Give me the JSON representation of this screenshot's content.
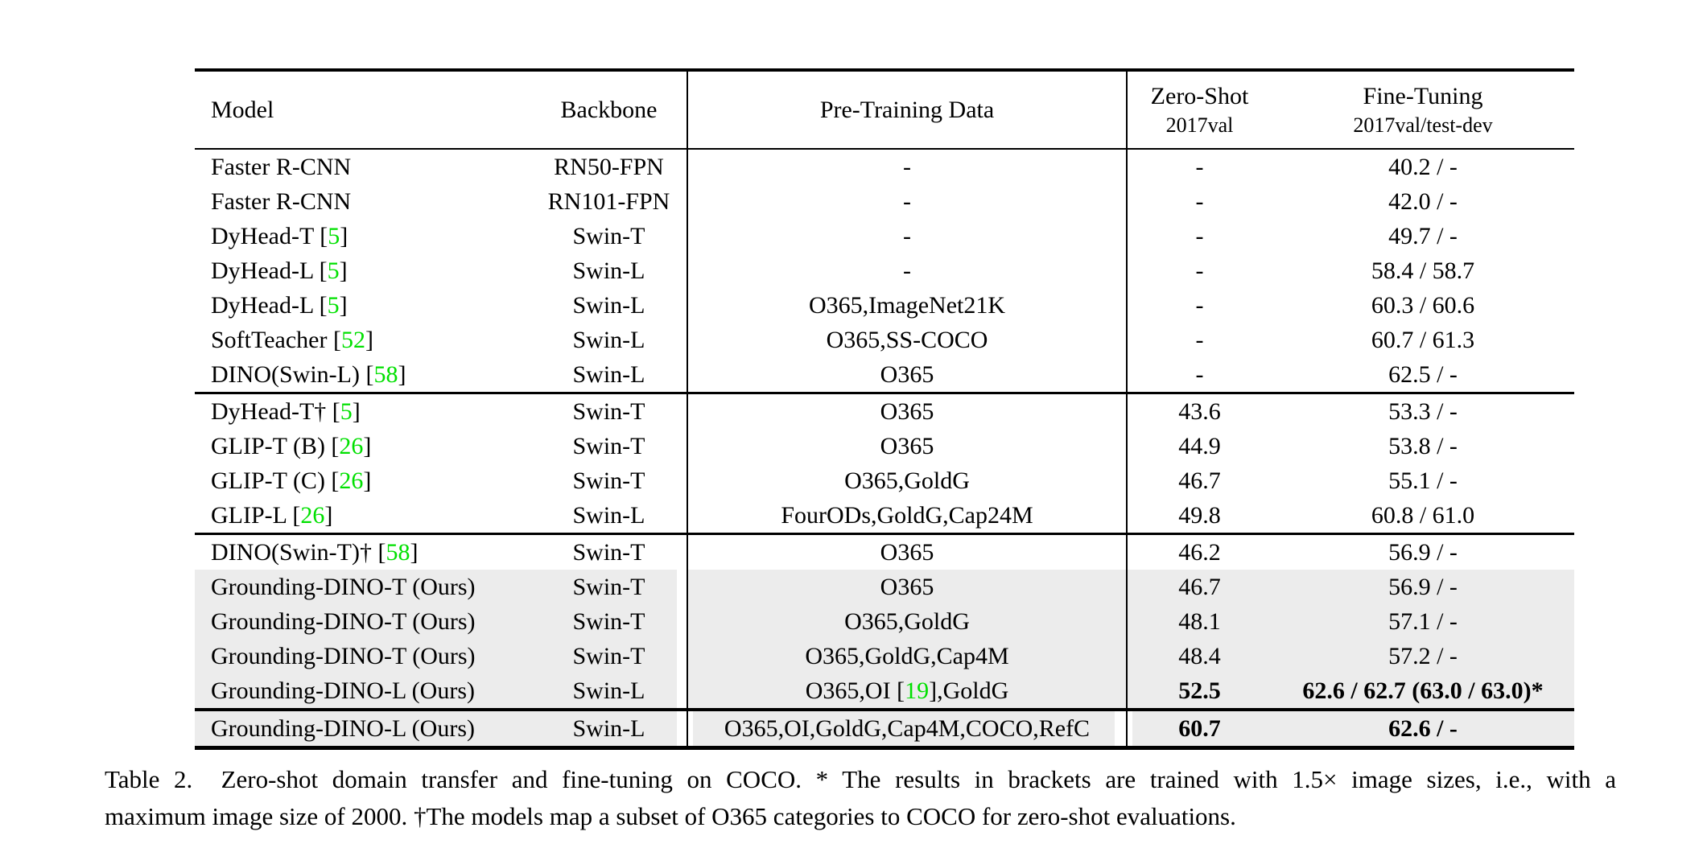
{
  "colors": {
    "citation_link": "#00e000",
    "row_highlight": "#ececec",
    "text": "#000000"
  },
  "table": {
    "header": {
      "model": "Model",
      "backbone": "Backbone",
      "pretrain": "Pre-Training Data",
      "zeroshot_title": "Zero-Shot",
      "zeroshot_sub": "2017val",
      "finetune_title": "Fine-Tuning",
      "finetune_sub": "2017val/test-dev"
    },
    "sections": [
      {
        "rows": [
          {
            "model_pre": "Faster R-CNN",
            "model_cite": "",
            "model_post": "",
            "backbone": "RN50-FPN",
            "pretrain_pre": "-",
            "pretrain_cite": "",
            "pretrain_post": "",
            "zeroshot": "-",
            "finetune": "40.2 / -",
            "bold_scores": false,
            "highlight": false
          },
          {
            "model_pre": "Faster R-CNN",
            "model_cite": "",
            "model_post": "",
            "backbone": "RN101-FPN",
            "pretrain_pre": "-",
            "pretrain_cite": "",
            "pretrain_post": "",
            "zeroshot": "-",
            "finetune": "42.0 / -",
            "bold_scores": false,
            "highlight": false
          },
          {
            "model_pre": "DyHead-T [",
            "model_cite": "5",
            "model_post": "]",
            "backbone": "Swin-T",
            "pretrain_pre": "-",
            "pretrain_cite": "",
            "pretrain_post": "",
            "zeroshot": "-",
            "finetune": "49.7 / -",
            "bold_scores": false,
            "highlight": false
          },
          {
            "model_pre": "DyHead-L [",
            "model_cite": "5",
            "model_post": "]",
            "backbone": "Swin-L",
            "pretrain_pre": "-",
            "pretrain_cite": "",
            "pretrain_post": "",
            "zeroshot": "-",
            "finetune": "58.4 / 58.7",
            "bold_scores": false,
            "highlight": false
          },
          {
            "model_pre": "DyHead-L [",
            "model_cite": "5",
            "model_post": "]",
            "backbone": "Swin-L",
            "pretrain_pre": "O365,ImageNet21K",
            "pretrain_cite": "",
            "pretrain_post": "",
            "zeroshot": "-",
            "finetune": "60.3 / 60.6",
            "bold_scores": false,
            "highlight": false
          },
          {
            "model_pre": "SoftTeacher [",
            "model_cite": "52",
            "model_post": "]",
            "backbone": "Swin-L",
            "pretrain_pre": "O365,SS-COCO",
            "pretrain_cite": "",
            "pretrain_post": "",
            "zeroshot": "-",
            "finetune": "60.7 / 61.3",
            "bold_scores": false,
            "highlight": false
          },
          {
            "model_pre": "DINO(Swin-L) [",
            "model_cite": "58",
            "model_post": "]",
            "backbone": "Swin-L",
            "pretrain_pre": "O365",
            "pretrain_cite": "",
            "pretrain_post": "",
            "zeroshot": "-",
            "finetune": "62.5 / -",
            "bold_scores": false,
            "highlight": false
          }
        ]
      },
      {
        "rows": [
          {
            "model_pre": "DyHead-T† [",
            "model_cite": "5",
            "model_post": "]",
            "backbone": "Swin-T",
            "pretrain_pre": "O365",
            "pretrain_cite": "",
            "pretrain_post": "",
            "zeroshot": "43.6",
            "finetune": "53.3 / -",
            "bold_scores": false,
            "highlight": false
          },
          {
            "model_pre": "GLIP-T (B) [",
            "model_cite": "26",
            "model_post": "]",
            "backbone": "Swin-T",
            "pretrain_pre": "O365",
            "pretrain_cite": "",
            "pretrain_post": "",
            "zeroshot": "44.9",
            "finetune": "53.8 / -",
            "bold_scores": false,
            "highlight": false
          },
          {
            "model_pre": "GLIP-T (C) [",
            "model_cite": "26",
            "model_post": "]",
            "backbone": "Swin-T",
            "pretrain_pre": "O365,GoldG",
            "pretrain_cite": "",
            "pretrain_post": "",
            "zeroshot": "46.7",
            "finetune": "55.1 / -",
            "bold_scores": false,
            "highlight": false
          },
          {
            "model_pre": "GLIP-L [",
            "model_cite": "26",
            "model_post": "]",
            "backbone": "Swin-L",
            "pretrain_pre": "FourODs,GoldG,Cap24M",
            "pretrain_cite": "",
            "pretrain_post": "",
            "zeroshot": "49.8",
            "finetune": "60.8 / 61.0",
            "bold_scores": false,
            "highlight": false
          }
        ]
      },
      {
        "rows": [
          {
            "model_pre": "DINO(Swin-T)† [",
            "model_cite": "58",
            "model_post": "]",
            "backbone": "Swin-T",
            "pretrain_pre": "O365",
            "pretrain_cite": "",
            "pretrain_post": "",
            "zeroshot": "46.2",
            "finetune": "56.9 / -",
            "bold_scores": false,
            "highlight": false
          },
          {
            "model_pre": "Grounding-DINO-T (Ours)",
            "model_cite": "",
            "model_post": "",
            "backbone": "Swin-T",
            "pretrain_pre": "O365",
            "pretrain_cite": "",
            "pretrain_post": "",
            "zeroshot": "46.7",
            "finetune": "56.9 / -",
            "bold_scores": false,
            "highlight": true
          },
          {
            "model_pre": "Grounding-DINO-T (Ours)",
            "model_cite": "",
            "model_post": "",
            "backbone": "Swin-T",
            "pretrain_pre": "O365,GoldG",
            "pretrain_cite": "",
            "pretrain_post": "",
            "zeroshot": "48.1",
            "finetune": "57.1 / -",
            "bold_scores": false,
            "highlight": true
          },
          {
            "model_pre": "Grounding-DINO-T (Ours)",
            "model_cite": "",
            "model_post": "",
            "backbone": "Swin-T",
            "pretrain_pre": "O365,GoldG,Cap4M",
            "pretrain_cite": "",
            "pretrain_post": "",
            "zeroshot": "48.4",
            "finetune": "57.2 / -",
            "bold_scores": false,
            "highlight": true
          },
          {
            "model_pre": "Grounding-DINO-L (Ours)",
            "model_cite": "",
            "model_post": "",
            "backbone": "Swin-L",
            "pretrain_pre": "O365,OI [",
            "pretrain_cite": "19",
            "pretrain_post": "],GoldG",
            "zeroshot": "52.5",
            "finetune": "62.6 / 62.7 (63.0 / 63.0)*",
            "bold_scores": true,
            "highlight": true
          }
        ]
      },
      {
        "rows": [
          {
            "model_pre": "Grounding-DINO-L (Ours)",
            "model_cite": "",
            "model_post": "",
            "backbone": "Swin-L",
            "pretrain_pre": "O365,OI,GoldG,Cap4M,COCO,RefC",
            "pretrain_cite": "",
            "pretrain_post": "",
            "zeroshot": "60.7",
            "finetune": "62.6 / -",
            "bold_scores": true,
            "highlight": true
          }
        ]
      }
    ]
  },
  "caption": {
    "line1": "Table 2.  Zero-shot domain transfer and fine-tuning on COCO. * The results in brackets are trained with 1.5× image sizes, i.e., with a",
    "line2": "maximum image size of 2000. †The models map a subset of O365 categories to COCO for zero-shot evaluations."
  }
}
